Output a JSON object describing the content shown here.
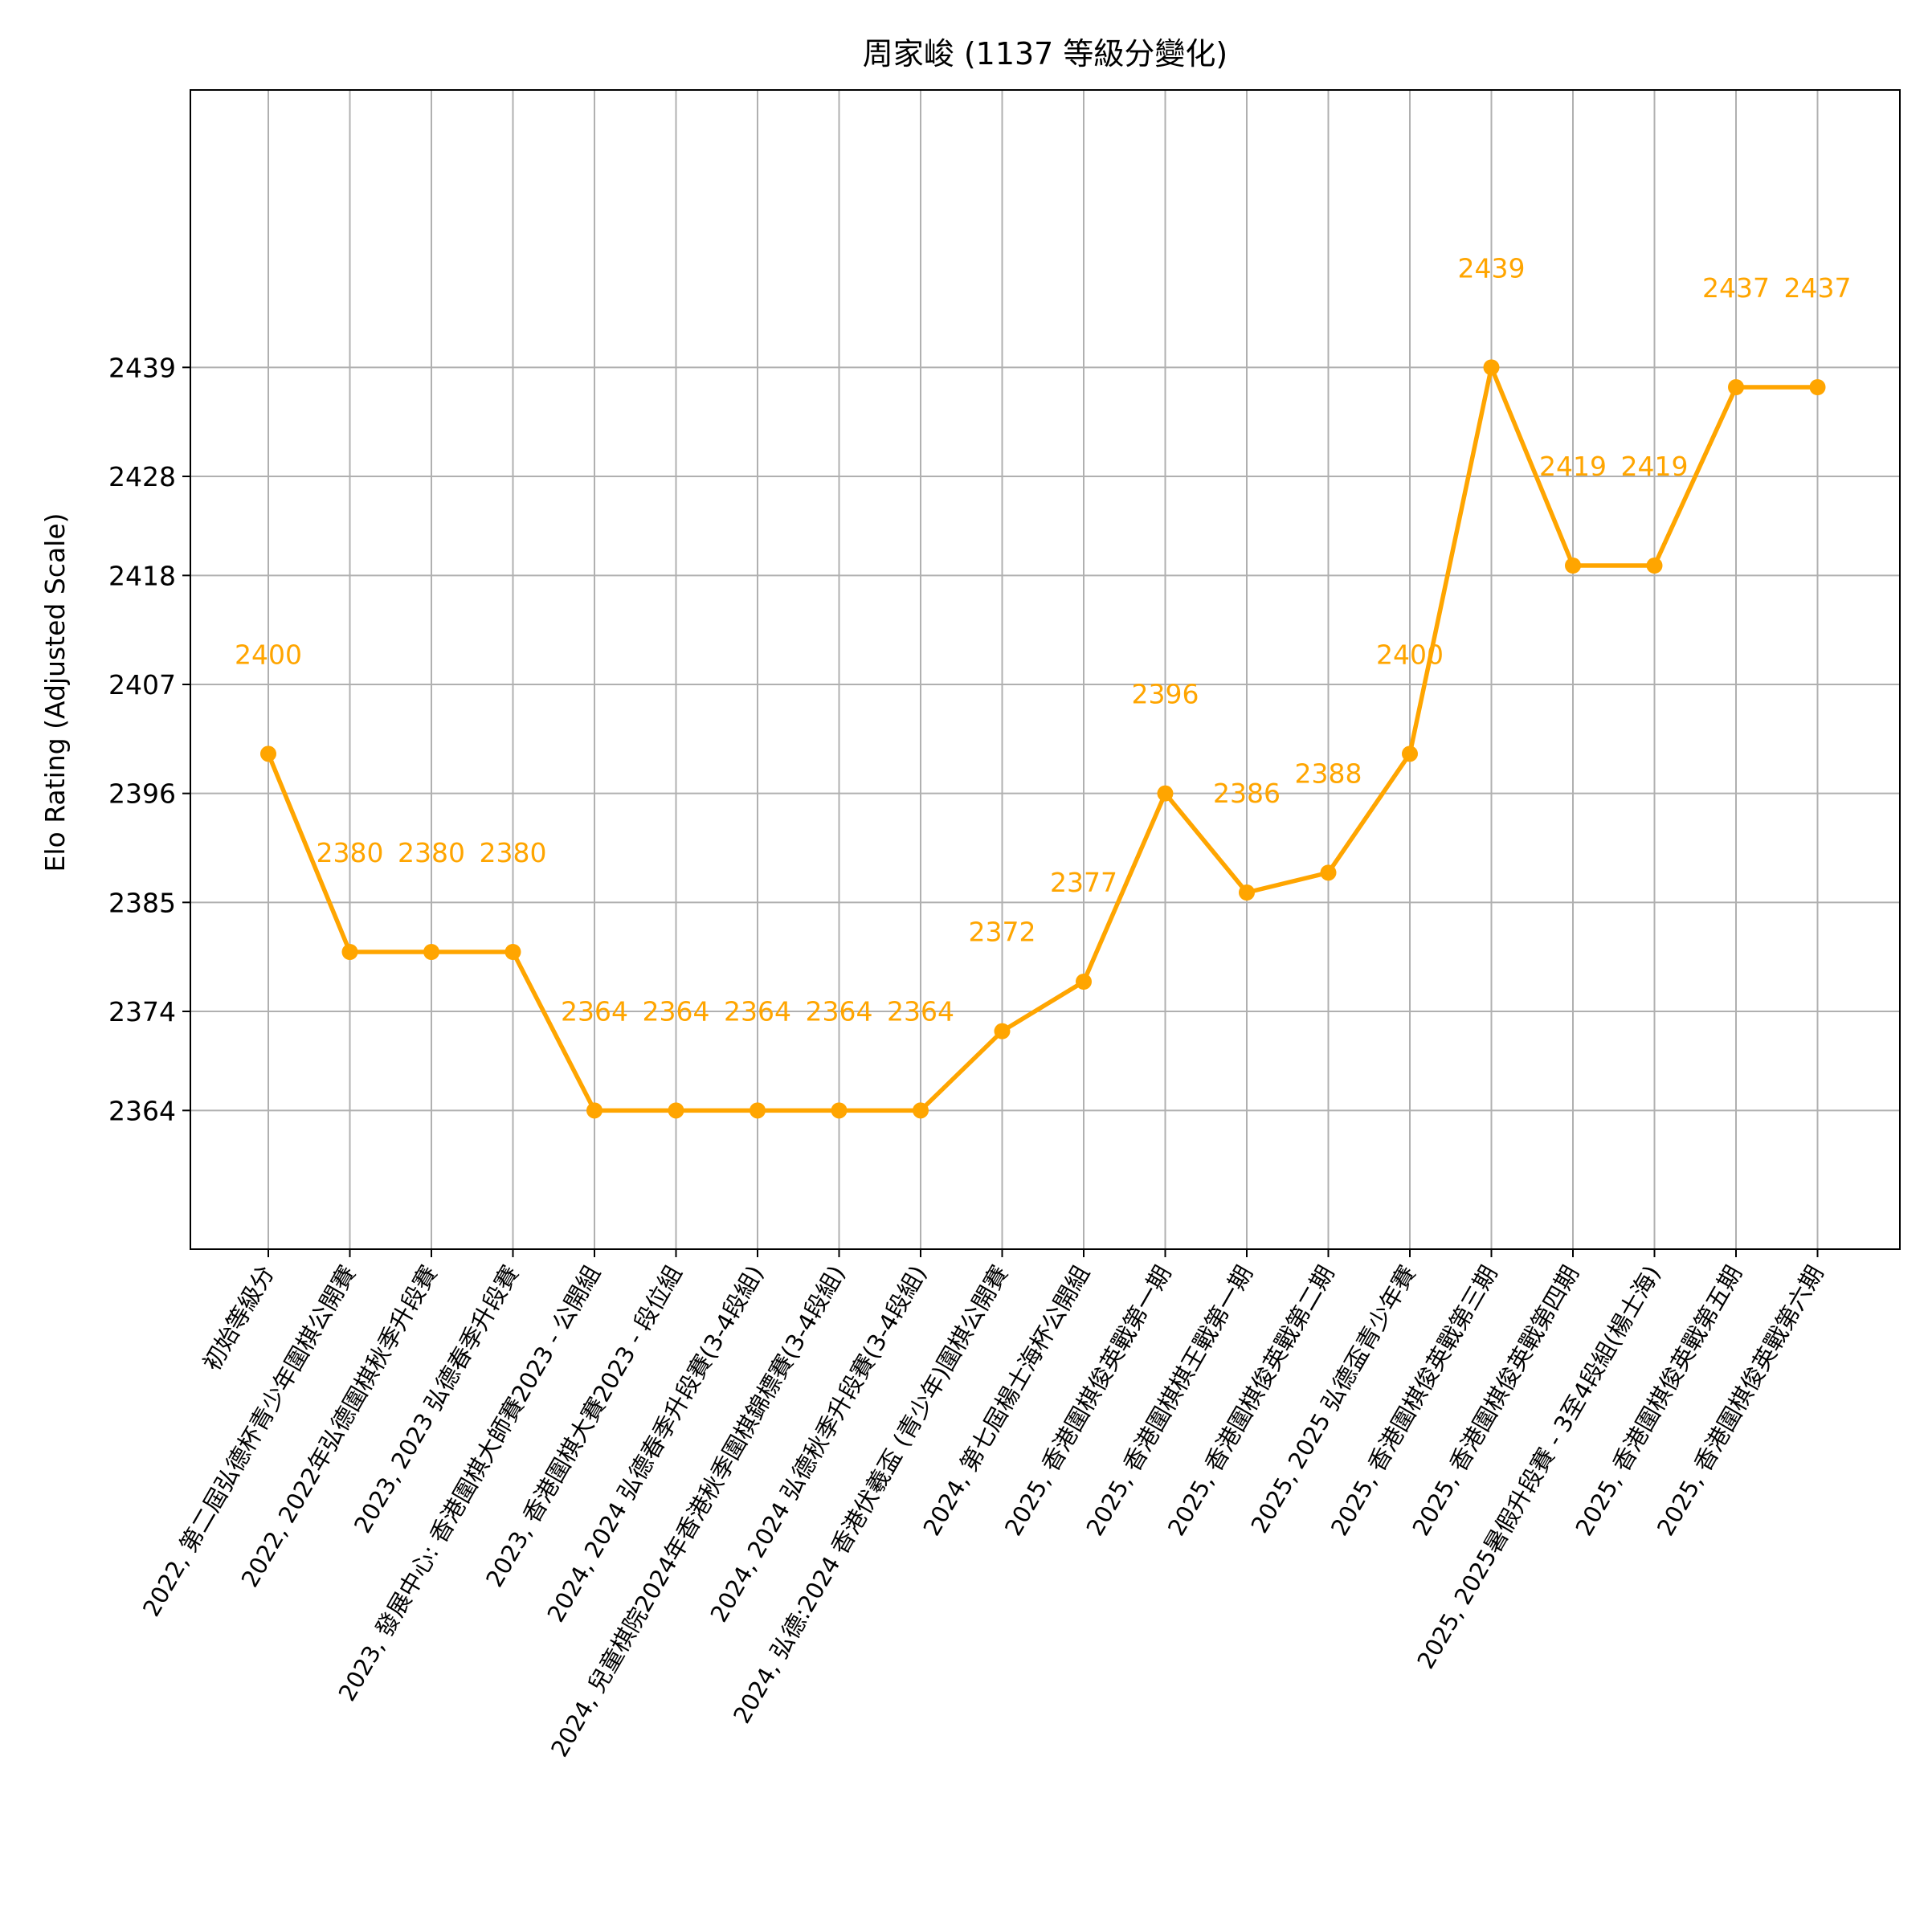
{
  "chart_data": {
    "type": "line",
    "title": "周家峻 (1137 等級分變化)",
    "xlabel": "",
    "ylabel": "Elo Rating (Adjusted Scale)",
    "categories": [
      "初始等級分",
      "2022, 第二屆弘德杯青少年圍棋公開賽",
      "2022, 2022年弘德圍棋秋季升段賽",
      "2023, 2023 弘德春季升段賽",
      "2023, 發展中心: 香港圍棋大師賽2023 - 公開組",
      "2023, 香港圍棋大賽2023 - 段位組",
      "2024, 2024 弘德春季升段賽(3-4段組)",
      "2024, 兒童棋院2024年香港秋季圍棋錦標賽(3-4段組)",
      "2024, 2024 弘德秋季升段賽(3-4段組)",
      "2024, 弘德:2024 香港伏羲盃 (青少年)圍棋公開賽",
      "2024, 第七屆楊士海杯公開組",
      "2025, 香港圍棋俊英戰第一期",
      "2025, 香港圍棋棋王戰第一期",
      "2025, 香港圍棋俊英戰第二期",
      "2025, 2025 弘德盃青少年賽",
      "2025, 香港圍棋俊英戰第三期",
      "2025, 香港圍棋俊英戰第四期",
      "2025, 2025暑假升段賽 - 3至4段組(楊士海)",
      "2025, 香港圍棋俊英戰第五期",
      "2025, 香港圍棋俊英戰第六期"
    ],
    "series": [
      {
        "values": [
          2400,
          2380,
          2380,
          2380,
          2364,
          2364,
          2364,
          2364,
          2364,
          2372,
          2377,
          2396,
          2386,
          2388,
          2400,
          2439,
          2419,
          2419,
          2437,
          2437
        ],
        "color": "#FFA500"
      }
    ],
    "data_labels": [
      "2400",
      "2380",
      "2380",
      "2380",
      "2364",
      "2364",
      "2364",
      "2364",
      "2364",
      "2372",
      "2377",
      "2396",
      "2386",
      "2388",
      "2400",
      "2439",
      "2419",
      "2419",
      "2437",
      "2437"
    ],
    "yticks": [
      2364,
      2374,
      2385,
      2396,
      2407,
      2418,
      2428,
      2439
    ],
    "ylim": [
      2350,
      2467
    ],
    "grid": true,
    "legend": "none"
  }
}
